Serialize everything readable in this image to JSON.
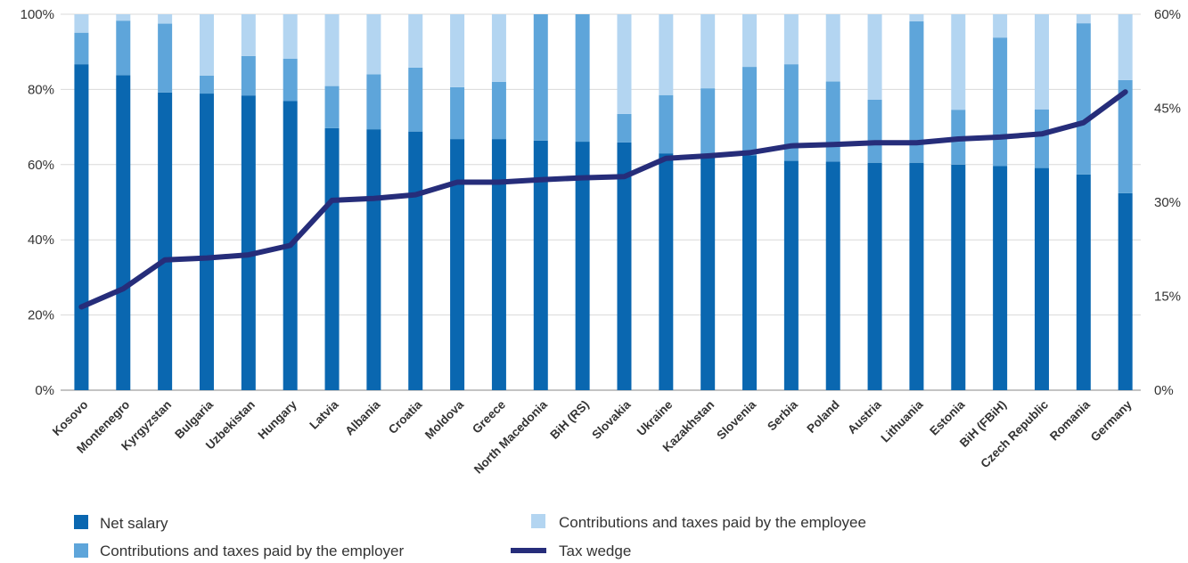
{
  "chart_data": {
    "type": "bar",
    "stacked": true,
    "categories": [
      "Kosovo",
      "Montenegro",
      "Kyrgyzstan",
      "Bulgaria",
      "Uzbekistan",
      "Hungary",
      "Latvia",
      "Albania",
      "Croatia",
      "Moldova",
      "Greece",
      "North Macedonia",
      "BiH (RS)",
      "Slovakia",
      "Ukraine",
      "Kazakhstan",
      "Slovenia",
      "Serbia",
      "Poland",
      "Austria",
      "Lithuania",
      "Estonia",
      "BiH (FBiH)",
      "Czech Republic",
      "Romania",
      "Germany"
    ],
    "series": [
      {
        "name": "Net salary",
        "axis": "left",
        "color": "#0a67b0",
        "values": [
          86.7,
          83.8,
          79.2,
          78.9,
          78.4,
          76.9,
          69.7,
          69.4,
          68.8,
          66.8,
          66.8,
          66.4,
          66.1,
          65.9,
          63.0,
          62.9,
          62.5,
          61.0,
          60.8,
          60.5,
          60.5,
          60.0,
          59.6,
          59.1,
          57.4,
          52.4
        ]
      },
      {
        "name": "Contributions and taxes paid by the employer",
        "axis": "left",
        "color": "#5ea5da",
        "values": [
          8.4,
          14.5,
          18.3,
          4.8,
          10.5,
          11.3,
          11.2,
          14.6,
          17.0,
          13.8,
          15.2,
          33.6,
          33.9,
          7.6,
          15.5,
          17.4,
          23.5,
          25.7,
          21.3,
          16.8,
          37.6,
          14.6,
          34.2,
          15.6,
          40.2,
          30.1
        ]
      },
      {
        "name": "Contributions and taxes paid by the employee",
        "axis": "left",
        "color": "#b3d5f1",
        "values": [
          4.9,
          1.7,
          2.5,
          16.3,
          11.1,
          11.8,
          19.1,
          16.0,
          14.2,
          19.4,
          18.0,
          0.0,
          0.0,
          26.5,
          21.5,
          19.7,
          14.0,
          13.3,
          17.9,
          22.7,
          1.9,
          25.4,
          6.2,
          25.3,
          2.4,
          17.5
        ]
      },
      {
        "name": "Tax wedge",
        "type": "line",
        "axis": "right",
        "color": "#262d7a",
        "values": [
          13.3,
          16.2,
          20.8,
          21.1,
          21.6,
          23.1,
          30.3,
          30.6,
          31.2,
          33.2,
          33.2,
          33.6,
          33.9,
          34.1,
          37.0,
          37.4,
          37.9,
          39.0,
          39.2,
          39.5,
          39.5,
          40.1,
          40.4,
          40.9,
          42.7,
          47.6
        ]
      }
    ],
    "y_left": {
      "ticks": [
        "0%",
        "20%",
        "40%",
        "60%",
        "80%",
        "100%"
      ],
      "min": 0,
      "max": 100
    },
    "y_right": {
      "ticks": [
        "0%",
        "15%",
        "30%",
        "45%",
        "60%"
      ],
      "min": 0,
      "max": 60
    },
    "grid": true,
    "legend_position": "bottom"
  },
  "legend": {
    "net_salary": "Net salary",
    "employer": "Contributions and taxes paid by the employer",
    "employee": "Contributions and taxes paid by the employee",
    "tax_wedge": "Tax wedge"
  }
}
